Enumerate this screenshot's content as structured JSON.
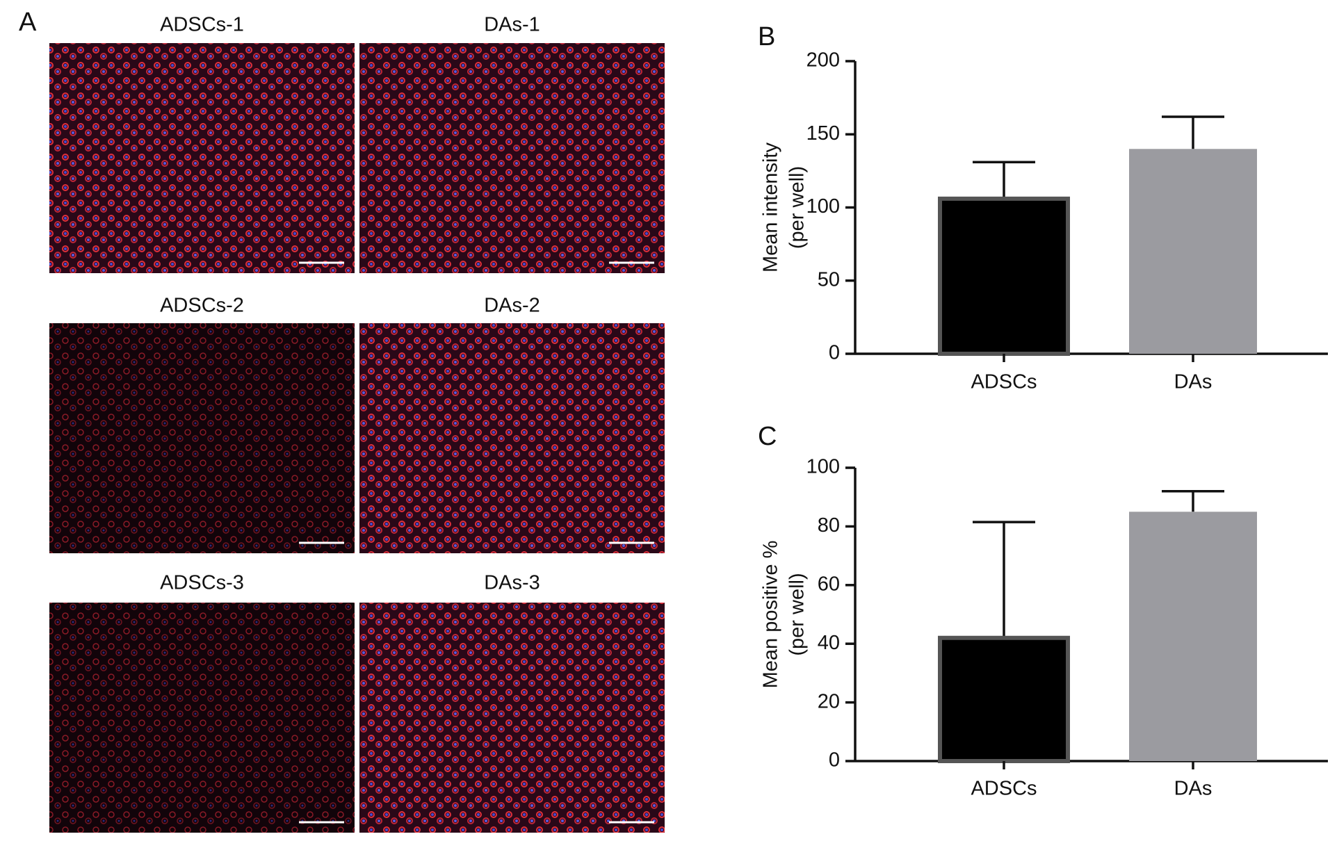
{
  "figure": {
    "panel_label": "A",
    "images": [
      {
        "title": "ADSCs-1"
      },
      {
        "title": "DAs-1"
      },
      {
        "title": "ADSCs-2"
      },
      {
        "title": "DAs-2"
      },
      {
        "title": "ADSCs-3"
      },
      {
        "title": "DAs-3"
      }
    ]
  },
  "chart_data": [
    {
      "type": "bar",
      "panel_label": "B",
      "y_label": [
        "Mean intensity",
        "(per well)"
      ],
      "categories": [
        "ADSCs",
        "DAs"
      ],
      "values": [
        106,
        140
      ],
      "errors": [
        25,
        22
      ],
      "colors": [
        "#000000",
        "#9b9ba0"
      ],
      "ylim": [
        0,
        200
      ],
      "yticks": [
        0,
        50,
        100,
        150,
        200
      ]
    },
    {
      "type": "bar",
      "panel_label": "C",
      "y_label": [
        "Mean positive %",
        "(per well)"
      ],
      "categories": [
        "ADSCs",
        "DAs"
      ],
      "values": [
        42,
        85
      ],
      "errors": [
        39.5,
        7
      ],
      "colors": [
        "#000000",
        "#9b9ba0"
      ],
      "ylim": [
        0,
        100
      ],
      "yticks": [
        0,
        20,
        40,
        60,
        80,
        100
      ]
    }
  ]
}
